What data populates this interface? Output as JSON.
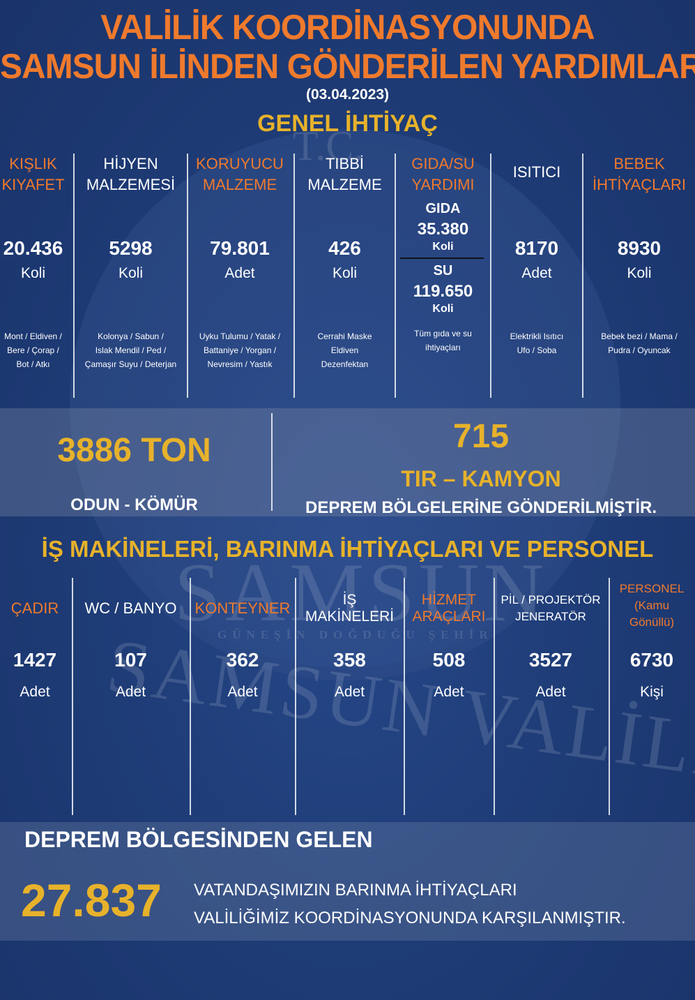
{
  "header": {
    "line1": "VALİLİK KOORDİNASYONUNDA",
    "line2": "SAMSUN İLİNDEN GÖNDERİLEN YARDIMLAR",
    "date": "(03.04.2023)"
  },
  "watermark": {
    "top": "T.C.",
    "city": "SAMSUN",
    "slogan": "GÜNEŞİN DOĞDUĞU ŞEHİR",
    "arc": "SAMSUN VALİLİĞİ"
  },
  "general": {
    "title": "GENEL İHTİYAÇ",
    "items": [
      {
        "head1": "KIŞLIK",
        "head2": "KIYAFET",
        "value": "20.436",
        "unit": "Koli",
        "desc": [
          "Mont / Eldiven /",
          "Bere / Çorap /",
          "Bot / Atkı"
        ]
      },
      {
        "head1": "HİJYEN",
        "head2": "MALZEMESİ",
        "value": "5298",
        "unit": "Koli",
        "desc": [
          "Kolonya / Sabun /",
          "Islak Mendil / Ped /",
          "Çamaşır Suyu / Deterjan"
        ]
      },
      {
        "head1": "KORUYUCU",
        "head2": "MALZEME",
        "value": "79.801",
        "unit": "Adet",
        "desc": [
          "Uyku Tulumu / Yatak /",
          "Battaniye / Yorgan /",
          "Nevresim / Yastık"
        ]
      },
      {
        "head1": "TIBBİ",
        "head2": "MALZEME",
        "value": "426",
        "unit": "Koli",
        "desc": [
          "Cerrahi Maske",
          "Eldiven",
          "Dezenfektan"
        ]
      },
      {
        "head1": "GIDA/SU",
        "head2": "YARDIMI",
        "food_label": "GIDA",
        "food_value": "35.380",
        "food_unit": "Koli",
        "water_label": "SU",
        "water_value": "119.650",
        "water_unit": "Koli",
        "desc": [
          "Tüm gıda ve su",
          "ihtiyaçları"
        ]
      },
      {
        "head1": "ISITICI",
        "head2": "",
        "value": "8170",
        "unit": "Adet",
        "desc": [
          "Elektrikli Isıtıcı",
          "Ufo / Soba"
        ]
      },
      {
        "head1": "BEBEK",
        "head2": "İHTİYAÇLARI",
        "value": "8930",
        "unit": "Koli",
        "desc": [
          "Bebek bezi / Mama /",
          "Pudra / Oyuncak"
        ]
      }
    ]
  },
  "band": {
    "left_value": "3886 TON",
    "left_label": "ODUN - KÖMÜR",
    "right_value": "715",
    "right_sub": "TIR – KAMYON",
    "right_label": "DEPREM BÖLGELERİNE GÖNDERİLMİŞTİR."
  },
  "machines": {
    "title": "İŞ MAKİNELERİ, BARINMA İHTİYAÇLARI VE PERSONEL",
    "items": [
      {
        "head": [
          "ÇADIR"
        ],
        "value": "1427",
        "unit": "Adet"
      },
      {
        "head": [
          "WC / BANYO"
        ],
        "value": "107",
        "unit": "Adet"
      },
      {
        "head": [
          "KONTEYNER"
        ],
        "value": "362",
        "unit": "Adet"
      },
      {
        "head": [
          "İŞ",
          "MAKİNELERİ"
        ],
        "value": "358",
        "unit": "Adet"
      },
      {
        "head": [
          "HİZMET",
          "ARAÇLARI"
        ],
        "value": "508",
        "unit": "Adet"
      },
      {
        "head": [
          "PİL / PROJEKTÖR",
          "JENERATÖR"
        ],
        "value": "3527",
        "unit": "Adet"
      },
      {
        "head": [
          "PERSONEL",
          "(Kamu",
          "Gönüllü)"
        ],
        "value": "6730",
        "unit": "Kişi"
      }
    ]
  },
  "footer": {
    "title": "DEPREM BÖLGESİNDEN GELEN",
    "value": "27.837",
    "text1": "VATANDAŞIMIZIN BARINMA İHTİYAÇLARI",
    "text2": "VALİLİĞİMİZ KOORDİNASYONUNDA KARŞILANMIŞTIR."
  },
  "colors": {
    "orange": "#ef7a2d",
    "gold": "#e7b22b",
    "navy": "#1f3d78"
  }
}
